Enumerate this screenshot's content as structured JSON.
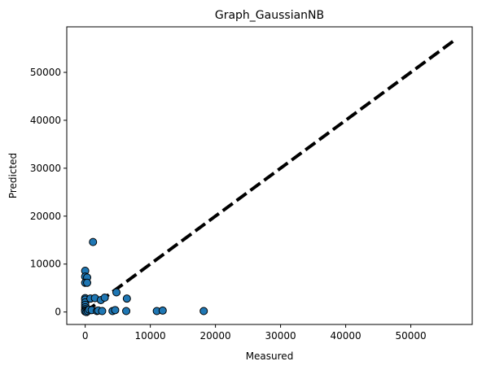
{
  "chart_data": {
    "type": "scatter",
    "title": "Graph_GaussianNB",
    "xlabel": "Measured",
    "ylabel": "Predicted",
    "xlim": [
      -2830,
      59430
    ],
    "ylim": [
      -2600,
      59500
    ],
    "xticks": [
      0,
      10000,
      20000,
      30000,
      40000,
      50000
    ],
    "yticks": [
      0,
      10000,
      20000,
      30000,
      40000,
      50000
    ],
    "grid": false,
    "reference_line": {
      "x": [
        0,
        56600
      ],
      "y": [
        0,
        56600
      ],
      "style": "dashed",
      "color": "#000000"
    },
    "points": [
      {
        "x": 0,
        "y": 8600
      },
      {
        "x": 0,
        "y": 7400
      },
      {
        "x": 300,
        "y": 7200
      },
      {
        "x": 0,
        "y": 6100
      },
      {
        "x": 300,
        "y": 6100
      },
      {
        "x": 0,
        "y": 2900
      },
      {
        "x": 0,
        "y": 2600
      },
      {
        "x": 0,
        "y": 2000
      },
      {
        "x": 0,
        "y": 1500
      },
      {
        "x": 0,
        "y": 1000
      },
      {
        "x": 0,
        "y": 600
      },
      {
        "x": 0,
        "y": 300
      },
      {
        "x": 0,
        "y": 100
      },
      {
        "x": 200,
        "y": 0
      },
      {
        "x": 400,
        "y": 200
      },
      {
        "x": 600,
        "y": 500
      },
      {
        "x": 800,
        "y": 2800
      },
      {
        "x": 1000,
        "y": 400
      },
      {
        "x": 1200,
        "y": 14600
      },
      {
        "x": 1500,
        "y": 2900
      },
      {
        "x": 1800,
        "y": 200
      },
      {
        "x": 2000,
        "y": 300
      },
      {
        "x": 2400,
        "y": 2500
      },
      {
        "x": 2600,
        "y": 200
      },
      {
        "x": 3000,
        "y": 3000
      },
      {
        "x": 4200,
        "y": 200
      },
      {
        "x": 4600,
        "y": 400
      },
      {
        "x": 4800,
        "y": 4100
      },
      {
        "x": 6300,
        "y": 200
      },
      {
        "x": 6400,
        "y": 2800
      },
      {
        "x": 11000,
        "y": 200
      },
      {
        "x": 11900,
        "y": 300
      },
      {
        "x": 18200,
        "y": 200
      }
    ],
    "marker_color": "#1f77b4",
    "marker_edge": "#000000"
  }
}
